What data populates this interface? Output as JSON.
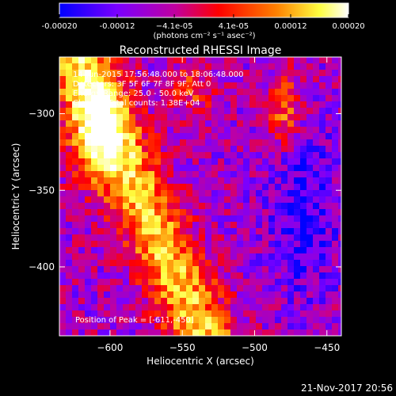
{
  "chart_data": {
    "type": "heatmap",
    "title": "Reconstructed RHESSI Image",
    "xlabel": "Heliocentric X (arcsec)",
    "ylabel": "Heliocentric Y (arcsec)",
    "xlim": [
      -635,
      -440
    ],
    "ylim": [
      -445,
      -263
    ],
    "xticks": [
      -600,
      -550,
      -500,
      -450
    ],
    "yticks": [
      -300,
      -350,
      -400
    ],
    "xtick_labels": [
      "−600",
      "−550",
      "−500",
      "−450"
    ],
    "ytick_labels": [
      "−300",
      "−350",
      "−400"
    ],
    "colorbar": {
      "ticks": [
        -0.0002,
        -0.00012,
        -4.1e-05,
        4.1e-05,
        0.00012,
        0.0002
      ],
      "tick_labels": [
        "-0.00020",
        "-0.00012",
        "−4.1e-05",
        "4.1e-05",
        "0.00012",
        "0.00020"
      ],
      "range": [
        -0.0002,
        0.0002
      ],
      "colors": [
        "#0000ff",
        "#7a00ff",
        "#c000a0",
        "#ff0000",
        "#ff8000",
        "#ffff40",
        "#ffffff"
      ],
      "unit_label": "(photons cm⁻² s⁻¹ asec⁻²)"
    },
    "annotations": [
      "14-Jun-2015 17:56:48.000 to 18:06:48.000",
      "Detectors: 3F 5F 6F 7F 8F 9F, Att 0",
      "Energy Range: 25.0 - 50.0 keV",
      "Clean     Total counts: 1.38E+04"
    ],
    "peak_label": "Position of Peak = [-611,-450]",
    "timestamp": "21-Nov-2017 20:56"
  }
}
